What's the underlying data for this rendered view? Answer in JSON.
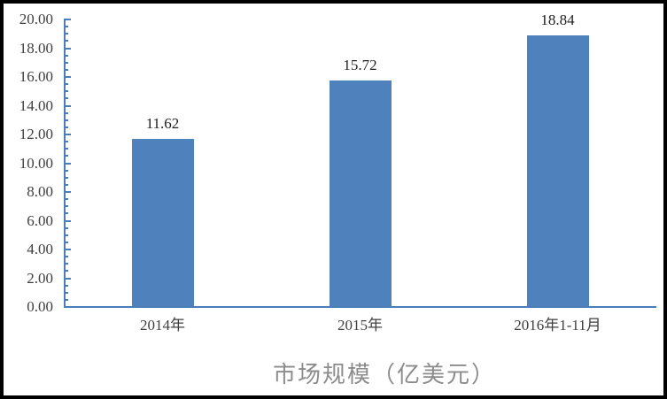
{
  "chart_data": {
    "type": "bar",
    "title": "市场规模（亿美元）",
    "categories": [
      "2014年",
      "2015年",
      "2016年1-11月"
    ],
    "values": [
      11.62,
      15.72,
      18.84
    ],
    "value_labels": [
      "11.62",
      "15.72",
      "18.84"
    ],
    "xlabel": "",
    "ylabel": "",
    "ylim": [
      0,
      20
    ],
    "y_major_step": 2,
    "y_minor_step": 0.5,
    "y_tick_labels": [
      "0.00",
      "2.00",
      "4.00",
      "6.00",
      "8.00",
      "10.00",
      "12.00",
      "14.00",
      "16.00",
      "18.00",
      "20.00"
    ],
    "grid": "off",
    "legend": "none",
    "colors": {
      "bar": "#4f81bd",
      "axis": "#4a7ebb",
      "value_label": "#1f1f1f",
      "tick_label": "#3f3f3f",
      "title": "#8c8c8c",
      "frame_border": "#000000",
      "background": "#ffffff"
    }
  }
}
